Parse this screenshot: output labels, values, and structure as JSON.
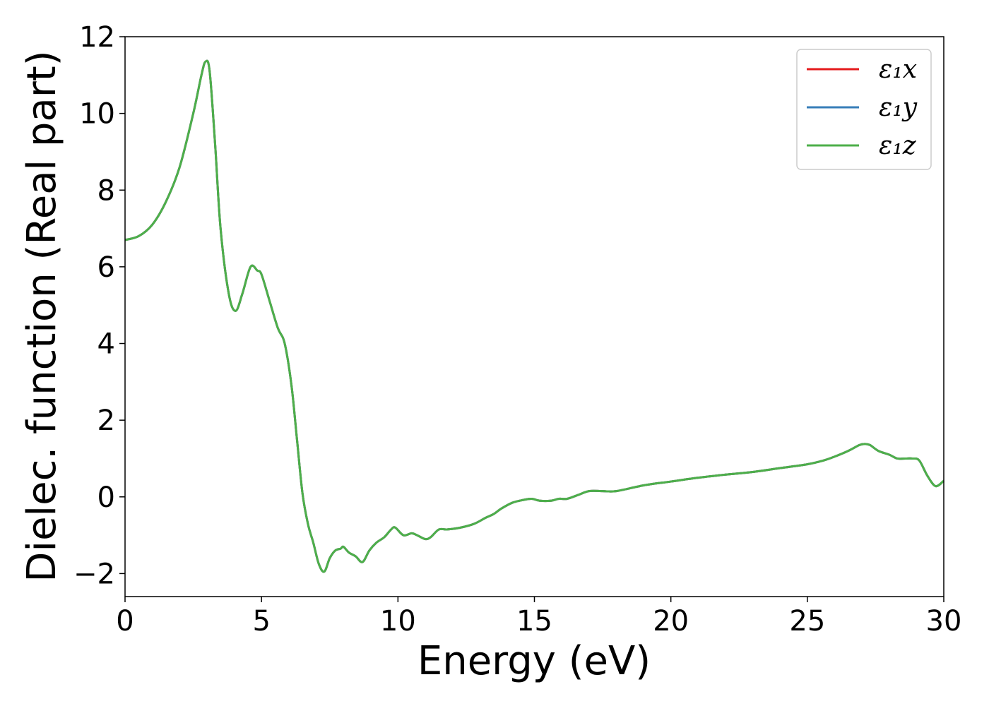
{
  "chart_data": {
    "type": "line",
    "xlabel": "Energy (eV)",
    "ylabel": "Dielec. function (Real part)",
    "xlim": [
      0,
      30
    ],
    "ylim": [
      -2.6,
      12
    ],
    "x_ticks": [
      0,
      5,
      10,
      15,
      20,
      25,
      30
    ],
    "y_ticks": [
      -2,
      0,
      2,
      4,
      6,
      8,
      10,
      12
    ],
    "x_tick_labels": [
      "0",
      "5",
      "10",
      "15",
      "20",
      "25",
      "30"
    ],
    "y_tick_labels": [
      "−2",
      "0",
      "2",
      "4",
      "6",
      "8",
      "10",
      "12"
    ],
    "grid": false,
    "legend_position": "top-right",
    "x": [
      0,
      0.5,
      1.0,
      1.5,
      2.0,
      2.5,
      2.8,
      2.95,
      3.1,
      3.3,
      3.5,
      3.8,
      4.05,
      4.3,
      4.6,
      4.85,
      5.0,
      5.3,
      5.6,
      5.85,
      6.1,
      6.3,
      6.5,
      6.7,
      6.9,
      7.1,
      7.3,
      7.5,
      7.7,
      7.9,
      8.0,
      8.2,
      8.45,
      8.7,
      8.95,
      9.2,
      9.5,
      9.75,
      9.9,
      10.2,
      10.5,
      10.7,
      11.0,
      11.2,
      11.5,
      11.8,
      12.3,
      12.8,
      13.2,
      13.5,
      13.8,
      14.2,
      14.6,
      14.9,
      15.2,
      15.6,
      15.9,
      16.2,
      16.6,
      17.0,
      17.5,
      18.0,
      19.0,
      20.0,
      21.0,
      22.0,
      23.0,
      24.0,
      25.0,
      25.6,
      26.0,
      26.5,
      26.9,
      27.1,
      27.3,
      27.6,
      28.0,
      28.3,
      28.6,
      28.85,
      29.1,
      29.4,
      29.7,
      30.0
    ],
    "series": [
      {
        "name": "ε₁x",
        "color": "#e41a1c",
        "values": [
          6.7,
          6.8,
          7.1,
          7.7,
          8.6,
          10.0,
          11.0,
          11.35,
          11.1,
          9.2,
          7.0,
          5.3,
          4.85,
          5.3,
          6.0,
          5.9,
          5.8,
          5.1,
          4.4,
          4.0,
          2.9,
          1.5,
          0.1,
          -0.7,
          -1.2,
          -1.75,
          -1.95,
          -1.6,
          -1.4,
          -1.35,
          -1.3,
          -1.45,
          -1.55,
          -1.7,
          -1.4,
          -1.2,
          -1.05,
          -0.85,
          -0.8,
          -1.0,
          -0.95,
          -1.0,
          -1.1,
          -1.05,
          -0.85,
          -0.85,
          -0.8,
          -0.7,
          -0.55,
          -0.45,
          -0.3,
          -0.15,
          -0.08,
          -0.05,
          -0.1,
          -0.1,
          -0.05,
          -0.05,
          0.05,
          0.15,
          0.15,
          0.15,
          0.3,
          0.4,
          0.5,
          0.58,
          0.65,
          0.75,
          0.85,
          0.95,
          1.05,
          1.2,
          1.35,
          1.38,
          1.35,
          1.2,
          1.1,
          1.0,
          1.0,
          1.0,
          0.95,
          0.55,
          0.28,
          0.42
        ]
      },
      {
        "name": "ε₁y",
        "color": "#377eb8",
        "values": [
          6.7,
          6.8,
          7.1,
          7.7,
          8.6,
          10.0,
          11.0,
          11.35,
          11.1,
          9.2,
          7.0,
          5.3,
          4.85,
          5.3,
          6.0,
          5.9,
          5.8,
          5.1,
          4.4,
          4.0,
          2.9,
          1.5,
          0.1,
          -0.7,
          -1.2,
          -1.75,
          -1.95,
          -1.6,
          -1.4,
          -1.35,
          -1.3,
          -1.45,
          -1.55,
          -1.7,
          -1.4,
          -1.2,
          -1.05,
          -0.85,
          -0.8,
          -1.0,
          -0.95,
          -1.0,
          -1.1,
          -1.05,
          -0.85,
          -0.85,
          -0.8,
          -0.7,
          -0.55,
          -0.45,
          -0.3,
          -0.15,
          -0.08,
          -0.05,
          -0.1,
          -0.1,
          -0.05,
          -0.05,
          0.05,
          0.15,
          0.15,
          0.15,
          0.3,
          0.4,
          0.5,
          0.58,
          0.65,
          0.75,
          0.85,
          0.95,
          1.05,
          1.2,
          1.35,
          1.38,
          1.35,
          1.2,
          1.1,
          1.0,
          1.0,
          1.0,
          0.95,
          0.55,
          0.28,
          0.42
        ]
      },
      {
        "name": "ε₁z",
        "color": "#4daf4a",
        "values": [
          6.7,
          6.8,
          7.1,
          7.7,
          8.6,
          10.0,
          11.0,
          11.35,
          11.1,
          9.2,
          7.0,
          5.3,
          4.85,
          5.3,
          6.0,
          5.9,
          5.8,
          5.1,
          4.4,
          4.0,
          2.9,
          1.5,
          0.1,
          -0.7,
          -1.2,
          -1.75,
          -1.95,
          -1.6,
          -1.4,
          -1.35,
          -1.3,
          -1.45,
          -1.55,
          -1.7,
          -1.4,
          -1.2,
          -1.05,
          -0.85,
          -0.8,
          -1.0,
          -0.95,
          -1.0,
          -1.1,
          -1.05,
          -0.85,
          -0.85,
          -0.8,
          -0.7,
          -0.55,
          -0.45,
          -0.3,
          -0.15,
          -0.08,
          -0.05,
          -0.1,
          -0.1,
          -0.05,
          -0.05,
          0.05,
          0.15,
          0.15,
          0.15,
          0.3,
          0.4,
          0.5,
          0.58,
          0.65,
          0.75,
          0.85,
          0.95,
          1.05,
          1.2,
          1.35,
          1.38,
          1.35,
          1.2,
          1.1,
          1.0,
          1.0,
          1.0,
          0.95,
          0.55,
          0.28,
          0.42
        ]
      }
    ]
  }
}
